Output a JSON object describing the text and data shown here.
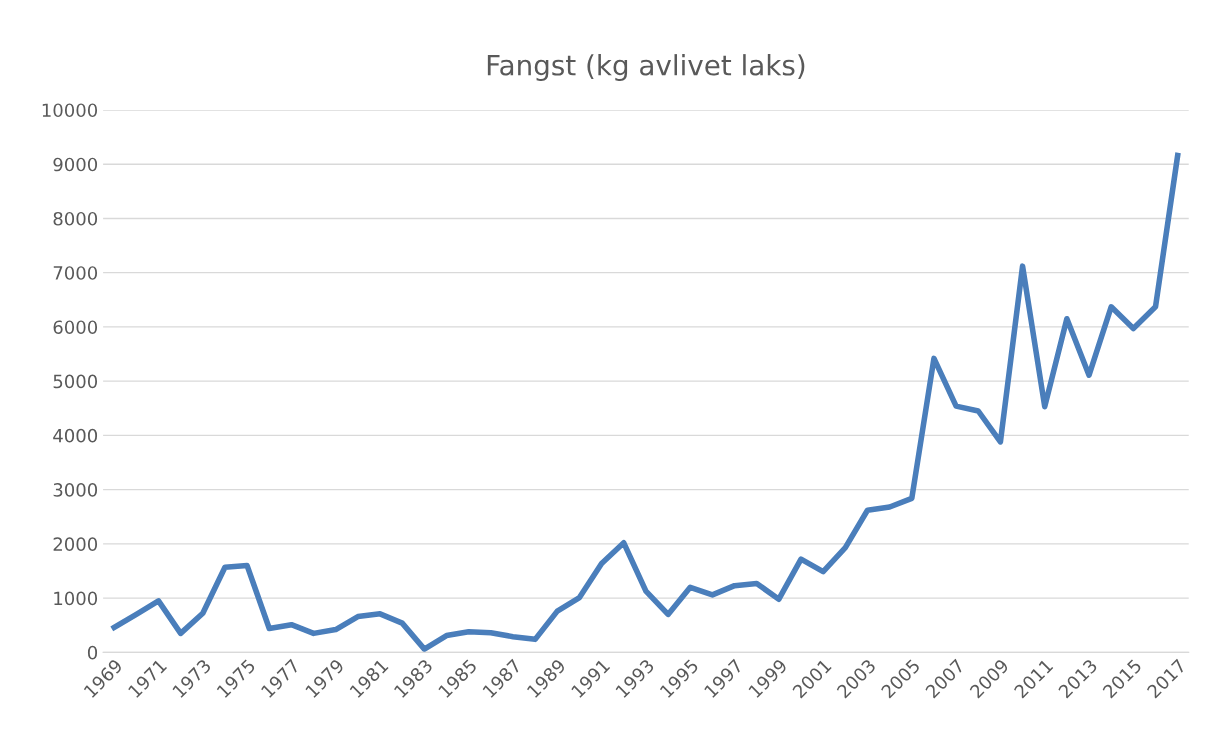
{
  "chart_data": {
    "type": "line",
    "title": "Fangst (kg avlivet laks)",
    "categories": [
      "1969",
      null,
      "1971",
      null,
      "1973",
      null,
      "1975",
      null,
      "1977",
      null,
      "1979",
      null,
      "1981",
      null,
      "1983",
      null,
      "1985",
      null,
      "1987",
      null,
      "1989",
      null,
      "1991",
      null,
      "1993",
      null,
      "1995",
      null,
      "1997",
      null,
      "1999",
      null,
      "2001",
      null,
      "2003",
      null,
      "2005",
      null,
      "2007",
      null,
      "2009",
      null,
      "2011",
      null,
      "2013",
      null,
      "2015",
      null,
      "2017"
    ],
    "series": [
      {
        "color": "#4a7ebb",
        "values": [
          460,
          700,
          950,
          350,
          720,
          1570,
          1600,
          440,
          510,
          350,
          420,
          660,
          710,
          540,
          60,
          310,
          380,
          360,
          290,
          240,
          760,
          1010,
          1640,
          2020,
          1130,
          700,
          1200,
          1060,
          1230,
          1270,
          980,
          1720,
          1490,
          1930,
          2620,
          2680,
          2840,
          5420,
          4540,
          4450,
          3880,
          7120,
          4530,
          6150,
          5110,
          6370,
          5970,
          6370,
          9160
        ]
      }
    ],
    "ylim": [
      0,
      10000
    ],
    "yticks": [
      0,
      1000,
      2000,
      3000,
      4000,
      5000,
      6000,
      7000,
      8000,
      9000,
      10000
    ],
    "grid": "y",
    "marker": "none",
    "line_style": "solid"
  }
}
